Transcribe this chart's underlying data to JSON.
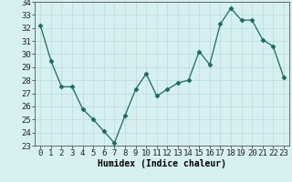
{
  "x": [
    0,
    1,
    2,
    3,
    4,
    5,
    6,
    7,
    8,
    9,
    10,
    11,
    12,
    13,
    14,
    15,
    16,
    17,
    18,
    19,
    20,
    21,
    22,
    23
  ],
  "y": [
    32.2,
    29.5,
    27.5,
    27.5,
    25.8,
    25.0,
    24.1,
    23.2,
    25.3,
    27.3,
    28.5,
    26.8,
    27.3,
    27.8,
    28.0,
    30.2,
    29.2,
    32.3,
    33.5,
    32.6,
    32.6,
    31.1,
    30.6,
    28.2
  ],
  "line_color": "#1a6b5a",
  "marker": "D",
  "marker_size": 2.5,
  "bg_color": "#d6f0f0",
  "grid_color": "#b8dada",
  "xlabel": "Humidex (Indice chaleur)",
  "ylim": [
    23,
    34
  ],
  "xlim": [
    -0.5,
    23.5
  ],
  "yticks": [
    23,
    24,
    25,
    26,
    27,
    28,
    29,
    30,
    31,
    32,
    33,
    34
  ],
  "xtick_labels": [
    "0",
    "1",
    "2",
    "3",
    "4",
    "5",
    "6",
    "7",
    "8",
    "9",
    "10",
    "11",
    "12",
    "13",
    "14",
    "15",
    "16",
    "17",
    "18",
    "19",
    "20",
    "21",
    "22",
    "23"
  ],
  "label_fontsize": 7,
  "tick_fontsize": 6.5
}
